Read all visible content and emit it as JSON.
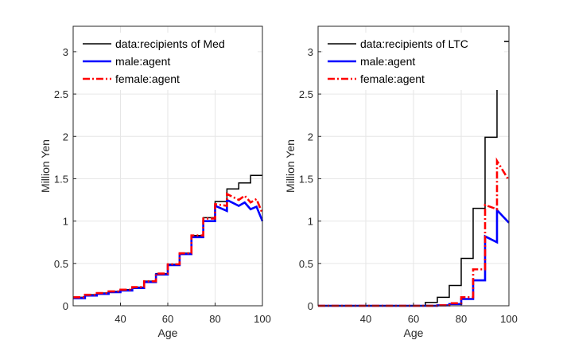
{
  "chart_data": [
    {
      "type": "line",
      "title": "",
      "xlabel": "Age",
      "ylabel": "Million Yen",
      "xlim": [
        20,
        100
      ],
      "ylim": [
        0,
        3.3
      ],
      "xticks": [
        40,
        60,
        80,
        100
      ],
      "yticks": [
        0,
        0.5,
        1,
        1.5,
        2,
        2.5,
        3
      ],
      "ytick_labels": [
        "0",
        "0.5",
        "1",
        "1.5",
        "2",
        "2.5",
        "3"
      ],
      "grid": true,
      "legend_position": "top",
      "series": [
        {
          "name": "data:recipients of Med",
          "color": "#000000",
          "style": "solid",
          "x": [
            20,
            25,
            25,
            30,
            30,
            35,
            35,
            40,
            40,
            45,
            45,
            50,
            50,
            55,
            55,
            60,
            60,
            65,
            65,
            70,
            70,
            75,
            75,
            80,
            80,
            85,
            85,
            90,
            90,
            95,
            95,
            100
          ],
          "y": [
            0.1,
            0.1,
            0.13,
            0.13,
            0.15,
            0.15,
            0.17,
            0.17,
            0.19,
            0.19,
            0.22,
            0.22,
            0.29,
            0.29,
            0.38,
            0.38,
            0.49,
            0.49,
            0.62,
            0.62,
            0.83,
            0.83,
            1.04,
            1.04,
            1.23,
            1.23,
            1.38,
            1.38,
            1.45,
            1.45,
            1.54,
            1.54
          ]
        },
        {
          "name": "male:agent",
          "color": "#0000ff",
          "style": "solid",
          "x": [
            20,
            25,
            25,
            30,
            30,
            35,
            35,
            40,
            40,
            45,
            45,
            50,
            50,
            55,
            55,
            60,
            60,
            65,
            65,
            70,
            70,
            75,
            75,
            80,
            80,
            85,
            85,
            90,
            92.5,
            95,
            97.5,
            100
          ],
          "y": [
            0.09,
            0.09,
            0.12,
            0.12,
            0.14,
            0.14,
            0.16,
            0.16,
            0.18,
            0.18,
            0.21,
            0.21,
            0.28,
            0.28,
            0.37,
            0.37,
            0.48,
            0.48,
            0.61,
            0.61,
            0.81,
            0.81,
            1.0,
            1.0,
            1.18,
            1.12,
            1.25,
            1.18,
            1.22,
            1.14,
            1.17,
            1.0
          ]
        },
        {
          "name": "female:agent",
          "color": "#ff0000",
          "style": "dashdot",
          "x": [
            20,
            25,
            25,
            30,
            30,
            35,
            35,
            40,
            40,
            45,
            45,
            50,
            50,
            55,
            55,
            60,
            60,
            65,
            65,
            70,
            70,
            75,
            75,
            80,
            80,
            85,
            85,
            90,
            92.5,
            95,
            97.5,
            100
          ],
          "y": [
            0.1,
            0.1,
            0.13,
            0.13,
            0.15,
            0.15,
            0.17,
            0.17,
            0.19,
            0.19,
            0.22,
            0.22,
            0.29,
            0.29,
            0.38,
            0.38,
            0.49,
            0.49,
            0.62,
            0.62,
            0.83,
            0.83,
            1.03,
            1.03,
            1.2,
            1.18,
            1.32,
            1.25,
            1.3,
            1.22,
            1.26,
            1.09
          ]
        }
      ]
    },
    {
      "type": "line",
      "title": "",
      "xlabel": "Age",
      "ylabel": "Million Yen",
      "xlim": [
        20,
        100
      ],
      "ylim": [
        0,
        3.3
      ],
      "xticks": [
        40,
        60,
        80,
        100
      ],
      "yticks": [
        0,
        0.5,
        1,
        1.5,
        2,
        2.5,
        3
      ],
      "ytick_labels": [
        "0",
        "0.5",
        "1",
        "1.5",
        "2",
        "2.5",
        "3"
      ],
      "grid": true,
      "legend_position": "top",
      "series": [
        {
          "name": "data:recipients of LTC",
          "color": "#000000",
          "style": "solid",
          "x": [
            20,
            65,
            65,
            70,
            70,
            75,
            75,
            80,
            80,
            85,
            85,
            90,
            90,
            95,
            95,
            100
          ],
          "y": [
            0,
            0,
            0.04,
            0.04,
            0.1,
            0.1,
            0.24,
            0.24,
            0.56,
            0.56,
            1.15,
            1.15,
            1.99,
            1.99,
            3.12,
            3.12
          ]
        },
        {
          "name": "male:agent",
          "color": "#0000ff",
          "style": "solid",
          "x": [
            20,
            70,
            70,
            75,
            75,
            80,
            80,
            85,
            85,
            90,
            90,
            95,
            95,
            100
          ],
          "y": [
            0,
            0,
            0.005,
            0.005,
            0.02,
            0.02,
            0.08,
            0.08,
            0.3,
            0.3,
            0.82,
            0.75,
            1.13,
            0.98
          ]
        },
        {
          "name": "female:agent",
          "color": "#ff0000",
          "style": "dashdot",
          "x": [
            20,
            70,
            70,
            75,
            75,
            80,
            80,
            85,
            85,
            90,
            90,
            95,
            95,
            100
          ],
          "y": [
            0,
            0,
            0.005,
            0.005,
            0.03,
            0.03,
            0.1,
            0.1,
            0.43,
            0.43,
            1.19,
            1.14,
            1.71,
            1.48
          ]
        }
      ]
    }
  ]
}
